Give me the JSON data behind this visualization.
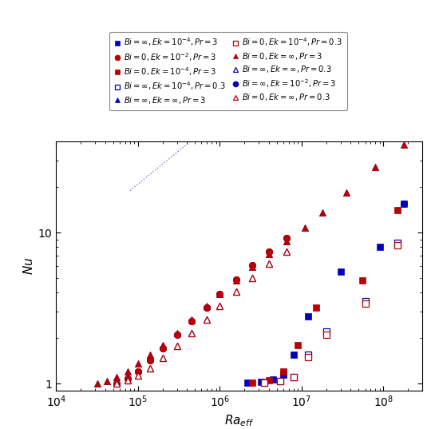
{
  "xlabel": "$Ra_{eff}$",
  "ylabel": "$Nu$",
  "xlim": [
    10000.0,
    300000000.0
  ],
  "ylim": [
    0.9,
    40
  ],
  "series": [
    {
      "label": "$Bi=\\infty,\\,Ek=10^{-4},\\,Pr=3$",
      "marker": "s",
      "color": "#0000bb",
      "filled": true,
      "x": [
        2200000.0,
        3200000.0,
        4500000.0,
        6000000.0,
        8000000.0,
        12000000.0,
        30000000.0,
        90000000.0,
        180000000.0
      ],
      "y": [
        1.01,
        1.02,
        1.06,
        1.15,
        1.55,
        2.8,
        5.5,
        8.0,
        15.5
      ]
    },
    {
      "label": "$Bi=0,\\,Ek=10^{-4},\\,Pr=3$",
      "marker": "s",
      "color": "#bb0000",
      "filled": true,
      "x": [
        2500000.0,
        4000000.0,
        6000000.0,
        9000000.0,
        15000000.0,
        55000000.0,
        150000000.0
      ],
      "y": [
        1.01,
        1.05,
        1.2,
        1.8,
        3.2,
        4.8,
        14.0
      ]
    },
    {
      "label": "$Bi=\\infty,\\,Ek=\\infty,\\,Pr=3$",
      "marker": "^",
      "color": "#0000bb",
      "filled": true,
      "x": [
        32000.0,
        42000.0,
        55000.0,
        75000.0,
        100000.0,
        140000.0,
        200000.0,
        300000.0,
        450000.0,
        700000.0,
        1000000.0,
        1600000.0,
        2500000.0,
        4000000.0,
        6500000.0,
        11000000.0,
        18000000.0,
        35000000.0,
        80000000.0,
        180000000.0
      ],
      "y": [
        1.0,
        1.04,
        1.1,
        1.2,
        1.35,
        1.55,
        1.8,
        2.15,
        2.65,
        3.25,
        3.9,
        4.8,
        5.9,
        7.2,
        8.8,
        10.8,
        13.5,
        18.5,
        27.0,
        38.0
      ]
    },
    {
      "label": "$Bi=0,\\,Ek=\\infty,\\,Pr=3$",
      "marker": "^",
      "color": "#bb0000",
      "filled": true,
      "x": [
        32000.0,
        42000.0,
        55000.0,
        75000.0,
        100000.0,
        140000.0,
        200000.0,
        300000.0,
        450000.0,
        700000.0,
        1000000.0,
        1600000.0,
        2500000.0,
        4000000.0,
        6500000.0,
        11000000.0,
        18000000.0,
        35000000.0,
        80000000.0,
        180000000.0
      ],
      "y": [
        1.0,
        1.04,
        1.1,
        1.2,
        1.35,
        1.55,
        1.8,
        2.15,
        2.65,
        3.25,
        3.9,
        4.8,
        5.9,
        7.2,
        8.8,
        10.8,
        13.5,
        18.5,
        27.0,
        38.0
      ]
    },
    {
      "label": "$Bi=\\infty,\\,Ek=10^{-2},\\,Pr=3$",
      "marker": "o",
      "color": "#0000bb",
      "filled": true,
      "x": [
        55000.0,
        75000.0,
        100000.0,
        140000.0,
        200000.0,
        300000.0,
        450000.0,
        700000.0,
        1000000.0,
        1600000.0,
        2500000.0,
        4000000.0,
        6500000.0,
        180000000.0
      ],
      "y": [
        1.0,
        1.08,
        1.2,
        1.42,
        1.72,
        2.1,
        2.6,
        3.2,
        3.9,
        4.9,
        6.1,
        7.5,
        9.2,
        15.5
      ]
    },
    {
      "label": "$Bi=0,\\,Ek=10^{-2},\\,Pr=3$",
      "marker": "o",
      "color": "#bb0000",
      "filled": true,
      "x": [
        55000.0,
        75000.0,
        100000.0,
        140000.0,
        200000.0,
        300000.0,
        450000.0,
        700000.0,
        1000000.0,
        1600000.0,
        2500000.0,
        4000000.0,
        6500000.0
      ],
      "y": [
        1.0,
        1.08,
        1.2,
        1.42,
        1.72,
        2.1,
        2.6,
        3.2,
        3.9,
        4.9,
        6.1,
        7.5,
        9.2
      ]
    },
    {
      "label": "$Bi=\\infty,\\,Ek=10^{-4},\\,Pr=0.3$",
      "marker": "s",
      "color": "#0000bb",
      "filled": false,
      "x": [
        3500000.0,
        5500000.0,
        8000000.0,
        12000000.0,
        20000000.0,
        60000000.0,
        150000000.0
      ],
      "y": [
        1.01,
        1.04,
        1.1,
        1.55,
        2.2,
        3.5,
        8.5
      ]
    },
    {
      "label": "$Bi=0,\\,Ek=10^{-4},\\,Pr=0.3$",
      "marker": "s",
      "color": "#bb0000",
      "filled": false,
      "x": [
        3500000.0,
        5500000.0,
        8000000.0,
        12000000.0,
        20000000.0,
        60000000.0,
        150000000.0
      ],
      "y": [
        1.01,
        1.04,
        1.1,
        1.5,
        2.1,
        3.4,
        8.2
      ]
    },
    {
      "label": "$Bi=\\infty,\\,Ek=\\infty,\\,Pr=0.3$",
      "marker": "^",
      "color": "#0000bb",
      "filled": false,
      "x": [
        55000.0,
        75000.0,
        100000.0,
        140000.0,
        200000.0,
        300000.0,
        450000.0,
        700000.0,
        1000000.0,
        1600000.0,
        2500000.0,
        4000000.0,
        6500000.0
      ],
      "y": [
        1.0,
        1.05,
        1.13,
        1.26,
        1.48,
        1.78,
        2.15,
        2.65,
        3.25,
        4.05,
        5.0,
        6.2,
        7.5
      ]
    },
    {
      "label": "$Bi=0,\\,Ek=\\infty,\\,Pr=0.3$",
      "marker": "^",
      "color": "#bb0000",
      "filled": false,
      "x": [
        55000.0,
        75000.0,
        100000.0,
        140000.0,
        200000.0,
        300000.0,
        450000.0,
        700000.0,
        1000000.0,
        1600000.0,
        2500000.0,
        4000000.0,
        6500000.0
      ],
      "y": [
        1.0,
        1.05,
        1.13,
        1.26,
        1.48,
        1.78,
        2.15,
        2.65,
        3.25,
        4.05,
        5.0,
        6.2,
        7.5
      ]
    }
  ],
  "dotted_line": {
    "x": [
      80000.0,
      220000000.0
    ],
    "slope": 0.44,
    "intercept_log": -0.88,
    "color": "#7777cc",
    "linestyle": ":"
  },
  "legend_labels": [
    "$Bi=\\infty, Ek=10^{-4}, Pr=3$",
    "$Bi=0, Ek=10^{-4}, Pr=3$",
    "$Bi=\\infty, Ek=\\infty, Pr=3$",
    "$Bi=0, Ek=\\infty, Pr=3$",
    "$Bi=\\infty, Ek=10^{-2}, Pr=3$",
    "$Bi=0, Ek=10^{-2}, Pr=3$",
    "$Bi=\\infty, Ek=10^{-4}, Pr=0.3$",
    "$Bi=0, Ek=10^{-4}, Pr=0.3$",
    "$Bi=\\infty, Ek=\\infty, Pr=0.3$",
    "$Bi=0, Ek=\\infty, Pr=0.3$"
  ],
  "marker_size": 6,
  "bg_color": "#ffffff"
}
